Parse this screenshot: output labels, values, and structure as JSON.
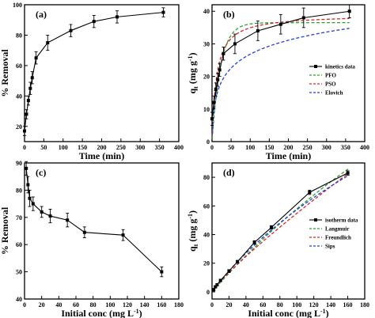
{
  "chart_data": [
    {
      "type": "line",
      "panel": "(a)",
      "xlabel": "Time (min)",
      "ylabel": "% Removal",
      "xlim": [
        0,
        400
      ],
      "ylim": [
        10,
        100
      ],
      "xticks": [
        0,
        50,
        100,
        150,
        200,
        250,
        300,
        350,
        400
      ],
      "yticks": [
        20,
        40,
        60,
        80,
        100
      ],
      "series": [
        {
          "x": [
            0,
            5,
            10,
            15,
            20,
            30,
            60,
            120,
            180,
            240,
            360
          ],
          "y": [
            17,
            28,
            37,
            45,
            52,
            65,
            75,
            83,
            89,
            92,
            95
          ],
          "err": [
            3,
            3,
            3,
            4,
            4,
            4,
            5,
            4,
            4,
            4,
            3
          ]
        }
      ]
    },
    {
      "type": "line",
      "panel": "(b)",
      "xlabel": "Time (min)",
      "ylabel": "q",
      "ylabel_sub": "t",
      "ylabel_unit": "(mg g",
      "ylabel_sup": "-1",
      "ylabel_close": ")",
      "xlim": [
        0,
        400
      ],
      "ylim": [
        0,
        42
      ],
      "xticks": [
        0,
        50,
        100,
        150,
        200,
        250,
        300,
        350,
        400
      ],
      "yticks": [
        0,
        10,
        20,
        30,
        40
      ],
      "legend_position": "right",
      "series": [
        {
          "name": "kinetics data",
          "color": "#000000",
          "style": "markers-line",
          "x": [
            0,
            5,
            10,
            15,
            20,
            30,
            60,
            120,
            180,
            240,
            360
          ],
          "y": [
            7,
            12,
            16,
            19,
            22,
            27,
            30,
            34,
            36,
            38,
            40
          ],
          "err": [
            2,
            2,
            2,
            2,
            2,
            2,
            3,
            3,
            3,
            3,
            2
          ]
        },
        {
          "name": "PFO",
          "color": "#2f9e2f",
          "style": "dashed",
          "model": "pfo",
          "params": {
            "qe": 36.5,
            "k": 0.045
          }
        },
        {
          "name": "PSO",
          "color": "#d62728",
          "style": "dashed",
          "model": "pso",
          "params": {
            "qe": 39.0,
            "k": 0.0022
          }
        },
        {
          "name": "Elovich",
          "color": "#1f3fd6",
          "style": "dashed",
          "model": "elovich",
          "params": {
            "a": 4.5,
            "b": 0.16
          }
        }
      ]
    },
    {
      "type": "line",
      "panel": "(c)",
      "xlabel": "Initial conc (mg L",
      "xlabel_sup": "-1",
      "xlabel_close": ")",
      "ylabel": "% Removal",
      "xlim": [
        0,
        180
      ],
      "ylim": [
        40,
        90
      ],
      "xticks": [
        0,
        20,
        40,
        60,
        80,
        100,
        120,
        140,
        160,
        180
      ],
      "yticks": [
        40,
        50,
        60,
        70,
        80,
        90
      ],
      "series": [
        {
          "x": [
            2,
            4,
            6,
            10,
            20,
            30,
            50,
            70,
            115,
            160
          ],
          "y": [
            88,
            82,
            77,
            75,
            72,
            70.5,
            69,
            64.5,
            63.5,
            50
          ],
          "err": [
            2.5,
            3,
            3,
            2.5,
            2,
            2.5,
            2.5,
            2,
            2,
            1.8
          ]
        }
      ]
    },
    {
      "type": "line",
      "panel": "(d)",
      "xlabel": "Initial conc (mg L",
      "xlabel_sup": "-1",
      "xlabel_close": ")",
      "ylabel": "q",
      "ylabel_sub": "t",
      "ylabel_unit": "(mg g",
      "ylabel_sup": "-1",
      "ylabel_close": ")",
      "xlim": [
        0,
        180
      ],
      "ylim": [
        -5,
        90
      ],
      "xticks": [
        0,
        20,
        40,
        60,
        80,
        100,
        120,
        140,
        160,
        180
      ],
      "yticks": [
        0,
        20,
        40,
        60,
        80
      ],
      "legend_position": "right",
      "series": [
        {
          "name": "isotherm data",
          "color": "#000000",
          "style": "markers-line",
          "x": [
            2,
            4,
            6,
            10,
            20,
            30,
            50,
            70,
            115,
            160
          ],
          "y": [
            1.5,
            3.5,
            5,
            8,
            14.5,
            21,
            34.5,
            45,
            69.5,
            83
          ],
          "err": [
            0.8,
            0.8,
            0.8,
            0.8,
            1,
            1,
            1.2,
            1.2,
            1.5,
            1.5
          ]
        },
        {
          "name": "Langmuir",
          "color": "#2f9e2f",
          "style": "dashed",
          "model": "langmuir",
          "params": {
            "qm": 420,
            "kl": 0.0016
          }
        },
        {
          "name": "Freundlich",
          "color": "#d62728",
          "style": "dashed",
          "model": "freundlich",
          "params": {
            "kf": 1.0,
            "n": 1.15
          }
        },
        {
          "name": "Sips",
          "color": "#1f3fd6",
          "style": "dashed",
          "model": "sips",
          "params": {
            "qm": 300,
            "ks": 0.0022,
            "n": 1.05
          }
        }
      ]
    }
  ]
}
